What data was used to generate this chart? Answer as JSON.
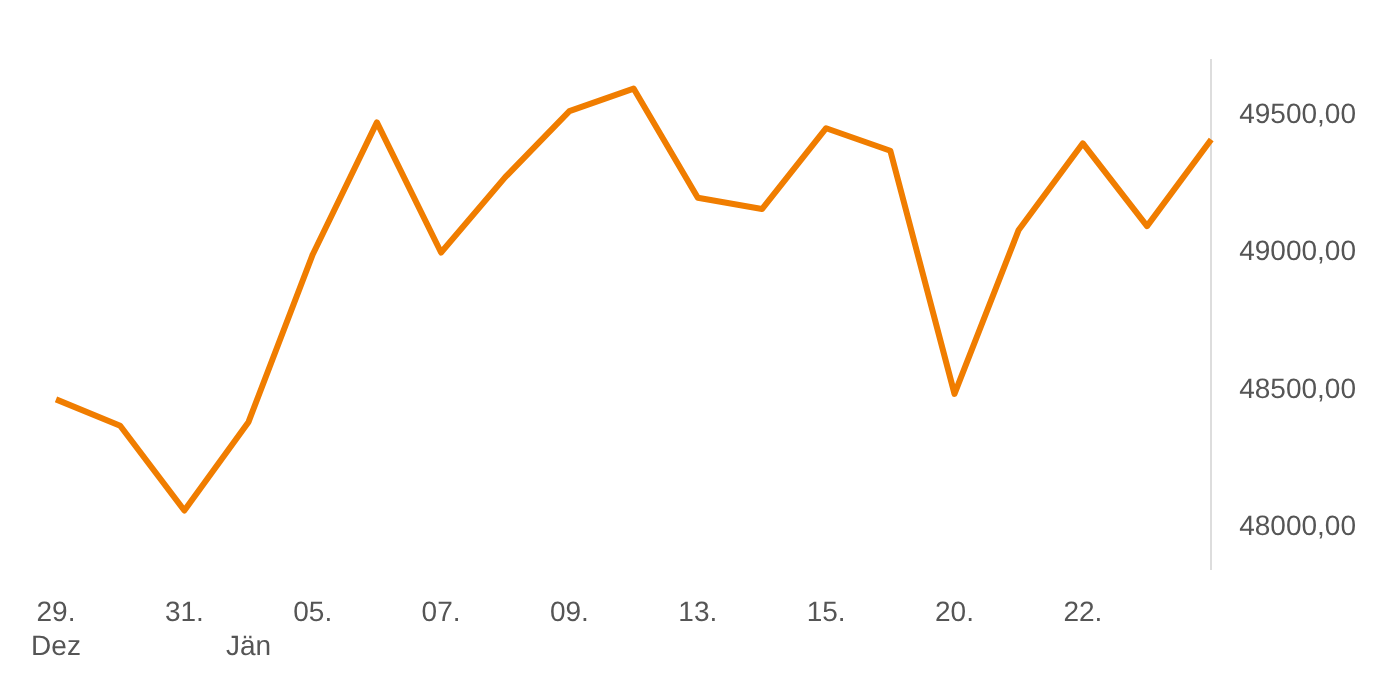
{
  "chart_data": {
    "type": "line",
    "categories": [
      "29.\nDez",
      null,
      "31.",
      "\nJän",
      "05.",
      null,
      "07.",
      null,
      "09.",
      null,
      "13.",
      null,
      "15.",
      null,
      "20.",
      null,
      "22.",
      null,
      null
    ],
    "series": [
      {
        "color": "#f07d00",
        "values": [
          48466,
          48370,
          48062,
          48384,
          48993,
          49473,
          49000,
          49274,
          49514,
          49596,
          49199,
          49158,
          49452,
          49370,
          48486,
          49082,
          49397,
          49096,
          49411
        ]
      }
    ],
    "ylim": [
      47850,
      49700
    ],
    "yticks": [
      {
        "value": 48000,
        "label": "48000,00"
      },
      {
        "value": 48500,
        "label": "48500,00"
      },
      {
        "value": 49000,
        "label": "49000,00"
      },
      {
        "value": 49500,
        "label": "49500,00"
      }
    ],
    "grid": false,
    "legend": false,
    "marker": "none",
    "line_style": "solid"
  }
}
